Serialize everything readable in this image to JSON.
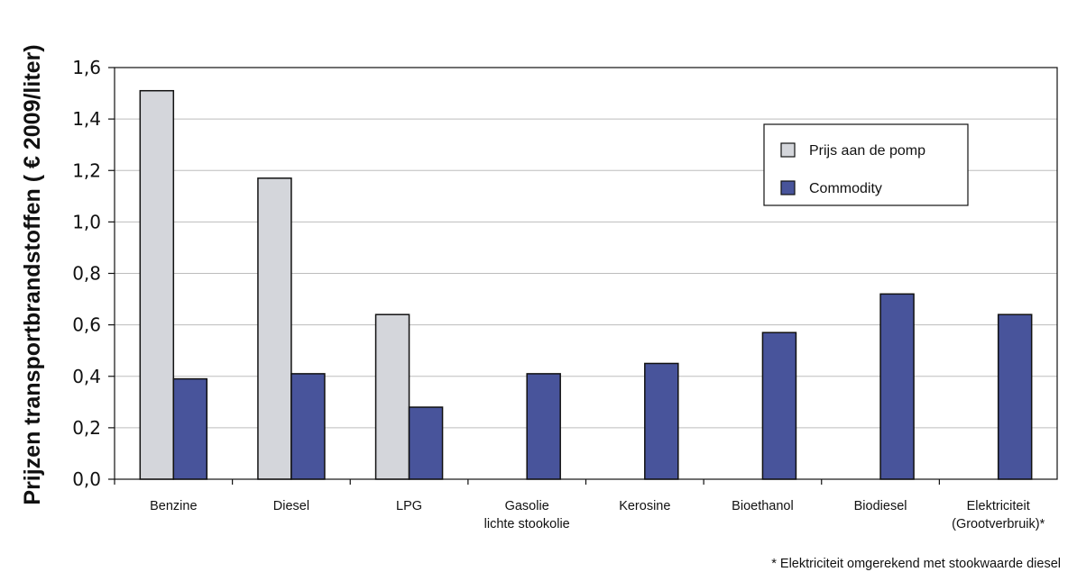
{
  "chart_data": {
    "type": "bar",
    "ylabel": "Prijzen transportbrandstoffen ( € 2009/liter)",
    "xlabel": "",
    "ylim": [
      0,
      1.6
    ],
    "yticks": [
      "0,0",
      "0,2",
      "0,4",
      "0,6",
      "0,8",
      "1,0",
      "1,2",
      "1,4",
      "1,6"
    ],
    "grid": true,
    "legend_position": "top-right",
    "categories": [
      [
        "Benzine"
      ],
      [
        "Diesel"
      ],
      [
        "LPG"
      ],
      [
        "Gasolie",
        "lichte stookolie"
      ],
      [
        "Kerosine"
      ],
      [
        "Bioethanol"
      ],
      [
        "Biodiesel"
      ],
      [
        "Elektriciteit",
        "(Grootverbruik)*"
      ]
    ],
    "series": [
      {
        "name": "Prijs aan de pomp",
        "color": "#d4d6db",
        "values": [
          1.51,
          1.17,
          0.64,
          null,
          null,
          null,
          null,
          null
        ]
      },
      {
        "name": "Commodity",
        "color": "#48549b",
        "values": [
          0.39,
          0.41,
          0.28,
          0.41,
          0.45,
          0.57,
          0.72,
          0.64
        ]
      }
    ],
    "footnote": "* Elektriciteit omgerekend met stookwaarde diesel"
  }
}
